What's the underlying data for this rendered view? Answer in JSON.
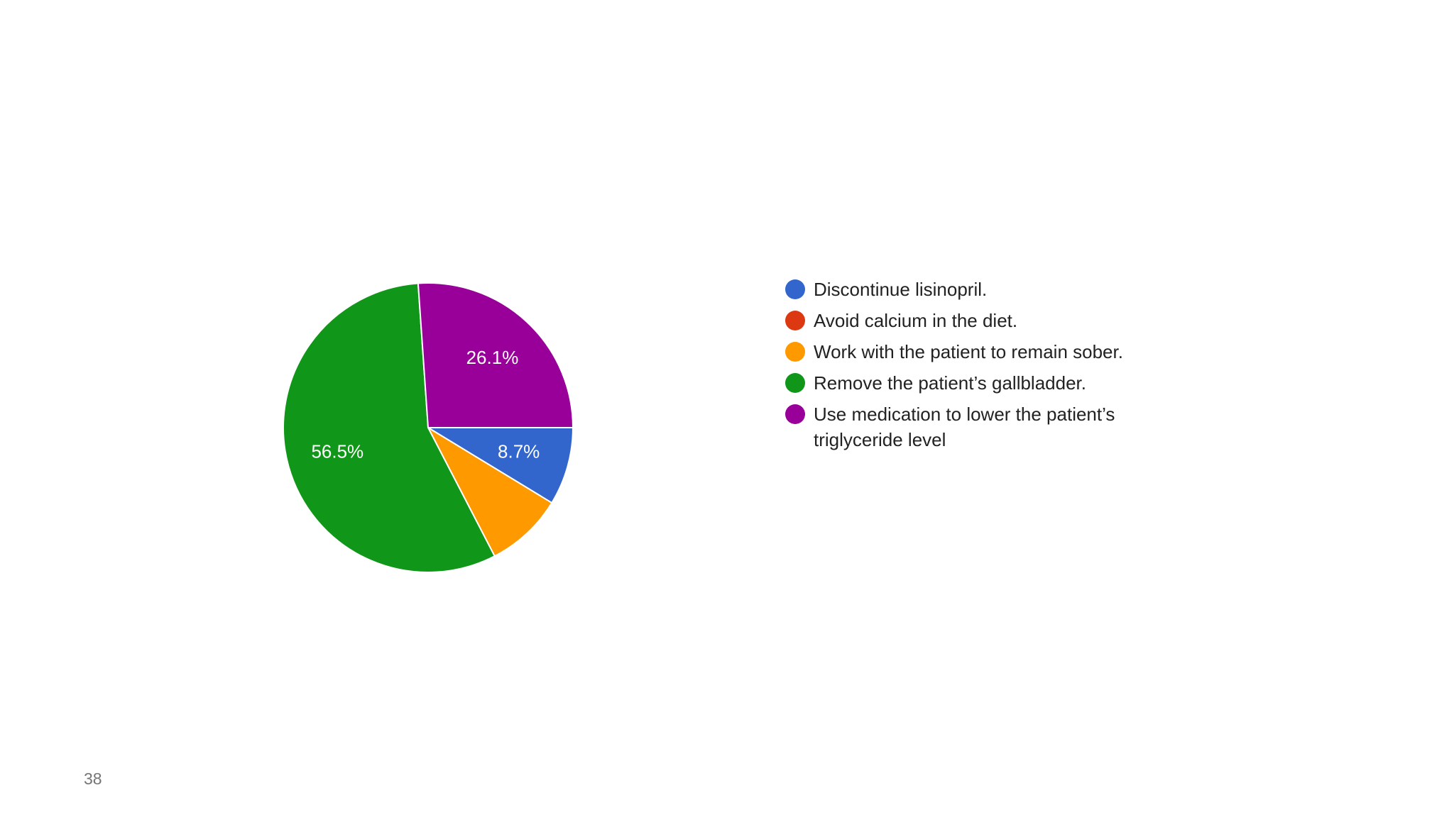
{
  "chart_data": {
    "type": "pie",
    "categories": [
      "Discontinue lisinopril.",
      "Avoid calcium in the diet.",
      "Work with the patient to remain sober.",
      "Remove the patient’s gallbladder.",
      "Use medication to lower the patient’s triglyceride level"
    ],
    "values": [
      8.7,
      0,
      8.7,
      56.5,
      26.1
    ],
    "value_labels": [
      "8.7%",
      null,
      null,
      "56.5%",
      "26.1%"
    ],
    "colors": [
      "#3366cc",
      "#dc3912",
      "#ff9900",
      "#109618",
      "#990099"
    ]
  },
  "page_number": "38"
}
